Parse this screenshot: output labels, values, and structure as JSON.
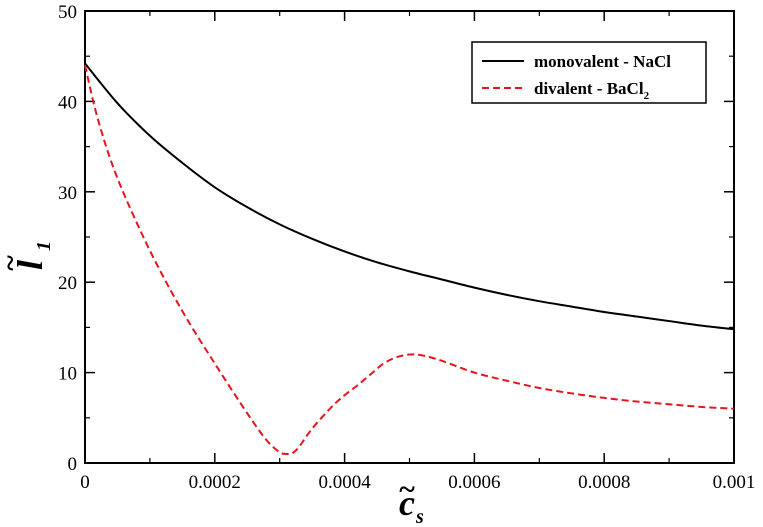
{
  "chart_data": {
    "type": "line",
    "title": "",
    "xlabel": {
      "main": "c",
      "tilde": "~",
      "subscript": "s"
    },
    "ylabel": {
      "main": "l",
      "tilde": "~",
      "subscript": "1"
    },
    "xlim": [
      0,
      0.001
    ],
    "ylim": [
      0,
      50
    ],
    "xticks": [
      {
        "value": 0,
        "label": "0"
      },
      {
        "value": 0.0002,
        "label": "0.0002"
      },
      {
        "value": 0.0004,
        "label": "0.0004"
      },
      {
        "value": 0.0006,
        "label": "0.0006"
      },
      {
        "value": 0.0008,
        "label": "0.0008"
      },
      {
        "value": 0.001,
        "label": "0.001"
      }
    ],
    "yticks": [
      {
        "value": 0,
        "label": "0"
      },
      {
        "value": 10,
        "label": "10"
      },
      {
        "value": 20,
        "label": "20"
      },
      {
        "value": 30,
        "label": "30"
      },
      {
        "value": 40,
        "label": "40"
      },
      {
        "value": 50,
        "label": "50"
      }
    ],
    "grid": false,
    "legend_position": "top-right",
    "series": [
      {
        "name": "monovalent - NaCl",
        "legend_main": "monovalent - NaCl",
        "legend_sub": "",
        "color": "#000000",
        "style": "solid",
        "x": [
          0,
          5e-05,
          0.0001,
          0.00015,
          0.0002,
          0.00025,
          0.0003,
          0.00035,
          0.0004,
          0.00045,
          0.0005,
          0.00055,
          0.0006,
          0.00065,
          0.0007,
          0.00075,
          0.0008,
          0.00085,
          0.0009,
          0.00095,
          0.001
        ],
        "y": [
          44.2,
          39.8,
          36.2,
          33.2,
          30.5,
          28.3,
          26.4,
          24.8,
          23.4,
          22.2,
          21.2,
          20.3,
          19.4,
          18.6,
          17.9,
          17.3,
          16.7,
          16.2,
          15.7,
          15.2,
          14.8
        ]
      },
      {
        "name": "divalent - BaCl2",
        "legend_main": "divalent - BaCl",
        "legend_sub": "2",
        "color": "#e8141c",
        "style": "dashed",
        "x": [
          0,
          2e-05,
          5e-05,
          0.0001,
          0.00015,
          0.0002,
          0.00025,
          0.00028,
          0.0003,
          0.00031,
          0.00032,
          0.00033,
          0.00035,
          0.00038,
          0.0004,
          0.00042,
          0.00044,
          0.00046,
          0.00048,
          0.0005,
          0.00052,
          0.00055,
          0.0006,
          0.00065,
          0.0007,
          0.00075,
          0.0008,
          0.00085,
          0.0009,
          0.00095,
          0.001
        ],
        "y": [
          44,
          38,
          31.5,
          23.5,
          16.8,
          11,
          5.5,
          2.5,
          1.2,
          1.0,
          1.1,
          1.8,
          3.8,
          6.2,
          7.5,
          8.6,
          9.8,
          11.0,
          11.7,
          12.0,
          11.9,
          11.3,
          10.0,
          9.1,
          8.3,
          7.7,
          7.2,
          6.8,
          6.5,
          6.2,
          6.0
        ]
      }
    ]
  }
}
